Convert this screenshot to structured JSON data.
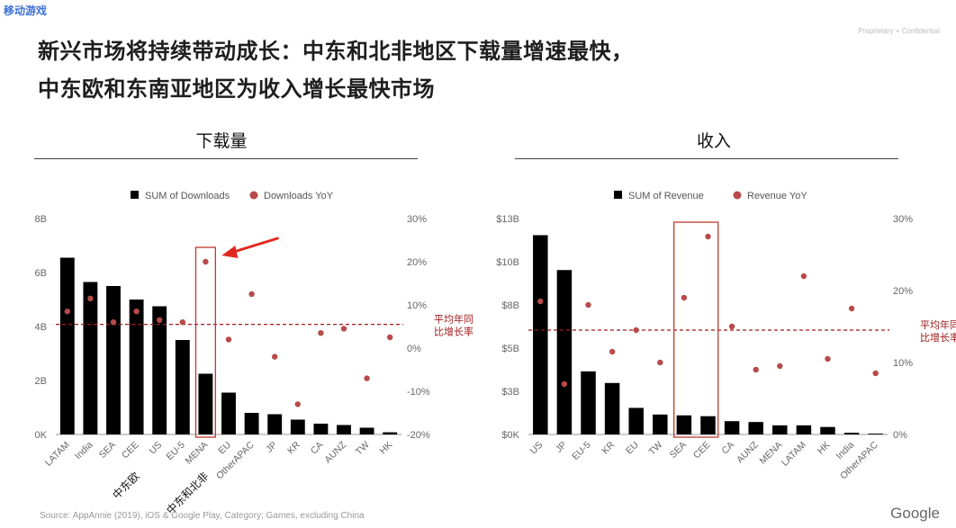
{
  "corner_tag": "移动游戏",
  "proprietary": "Proprietary + Confidential",
  "headline_line1": "新兴市场将持续带动成长：中东和北非地区下载量增速最快，",
  "headline_line2": "中东欧和东南亚地区为收入增长最快市场",
  "source": "Source: AppAnnie (2019), iOS & Google Play, Category; Games, excluding China",
  "footer_logo": "Google",
  "colors": {
    "bar": "#000000",
    "dot": "#b84a4a",
    "avg_line": "#a01c1c",
    "highlight": "#c0392b",
    "arrow": "#e0281e"
  },
  "chart_data": [
    {
      "type": "bar",
      "panel_title": "下载量",
      "legend": [
        "SUM of Downloads",
        "Downloads YoY"
      ],
      "categories": [
        "LATAM",
        "India",
        "SEA",
        "CEE",
        "US",
        "EU-5",
        "MENA",
        "EU",
        "OtherAPAC",
        "JP",
        "KR",
        "CA",
        "AUNZ",
        "TW",
        "HK"
      ],
      "series": [
        {
          "name": "SUM of Downloads",
          "type": "bar",
          "axis": "left",
          "values": [
            6.55,
            5.65,
            5.5,
            5.0,
            4.75,
            3.5,
            2.25,
            1.55,
            0.8,
            0.75,
            0.55,
            0.4,
            0.35,
            0.25,
            0.08
          ]
        },
        {
          "name": "Downloads YoY",
          "type": "scatter",
          "axis": "right",
          "values": [
            8.5,
            11.5,
            6.0,
            8.5,
            6.5,
            6.0,
            20.0,
            2.0,
            12.5,
            -2.0,
            -13.0,
            3.5,
            4.5,
            -7.0,
            2.5
          ]
        }
      ],
      "y_left": {
        "ticks": [
          "0K",
          "2B",
          "4B",
          "6B",
          "8B"
        ],
        "range": [
          0,
          8
        ]
      },
      "y_right": {
        "ticks": [
          "-20%",
          "-10%",
          "0%",
          "10%",
          "20%",
          "30%"
        ],
        "range": [
          -20,
          30
        ]
      },
      "avg_line_value": 5.5,
      "avg_label_line1": "平均年同",
      "avg_label_line2": "比增长率",
      "highlight_categories": [
        6
      ],
      "extra_labels": [
        {
          "text": "中东欧",
          "category": 3
        },
        {
          "text": "中东和北非",
          "category": 6
        }
      ],
      "arrow": true
    },
    {
      "type": "bar",
      "panel_title": "收入",
      "legend": [
        "SUM of Revenue",
        "Revenue YoY"
      ],
      "categories": [
        "US",
        "JP",
        "EU-5",
        "KR",
        "EU",
        "TW",
        "SEA",
        "CEE",
        "CA",
        "AUNZ",
        "MENA",
        "LATAM",
        "HK",
        "India",
        "OtherAPAC"
      ],
      "series": [
        {
          "name": "SUM of Revenue",
          "type": "bar",
          "axis": "left",
          "values": [
            12.0,
            9.9,
            3.8,
            3.1,
            1.6,
            1.2,
            1.15,
            1.1,
            0.8,
            0.75,
            0.55,
            0.55,
            0.45,
            0.1,
            0.05
          ]
        },
        {
          "name": "Revenue YoY",
          "type": "scatter",
          "axis": "right",
          "values": [
            18.5,
            7.0,
            18.0,
            11.5,
            14.5,
            10.0,
            19.0,
            27.5,
            15.0,
            9.0,
            9.5,
            22.0,
            10.5,
            17.5,
            8.5
          ]
        }
      ],
      "y_left": {
        "ticks": [
          "$0K",
          "$3B",
          "$5B",
          "$8B",
          "$10B",
          "$13B"
        ],
        "range": [
          0,
          13
        ]
      },
      "y_right": {
        "ticks": [
          "0%",
          "10%",
          "20%",
          "30%"
        ],
        "range": [
          0,
          30
        ]
      },
      "avg_line_value": 14.5,
      "avg_label_line1": "平均年同",
      "avg_label_line2": "比增长率",
      "highlight_categories": [
        6,
        7
      ],
      "extra_labels": [],
      "arrow": false
    }
  ]
}
